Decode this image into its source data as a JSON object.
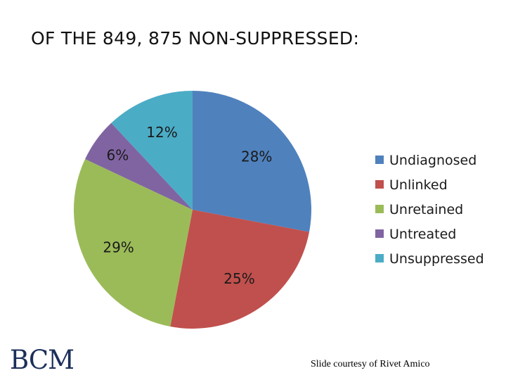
{
  "slide": {
    "title": "OF THE 849, 875 NON-SUPPRESSED:",
    "credit": "Slide courtesy of Rivet Amico",
    "logo_text": "BCM"
  },
  "chart_data": {
    "type": "pie",
    "title": "",
    "labels": [
      "Undiagnosed",
      "Unlinked",
      "Unretained",
      "Untreated",
      "Unsuppressed"
    ],
    "values": [
      28,
      25,
      29,
      6,
      12
    ],
    "value_labels": [
      "28%",
      "25%",
      "29%",
      "6%",
      "12%"
    ],
    "colors": [
      "#4f81bd",
      "#c0504d",
      "#9bbb59",
      "#8064a2",
      "#4bacc6"
    ],
    "start": "12 o'clock",
    "direction": "clockwise",
    "legend_position": "right"
  }
}
